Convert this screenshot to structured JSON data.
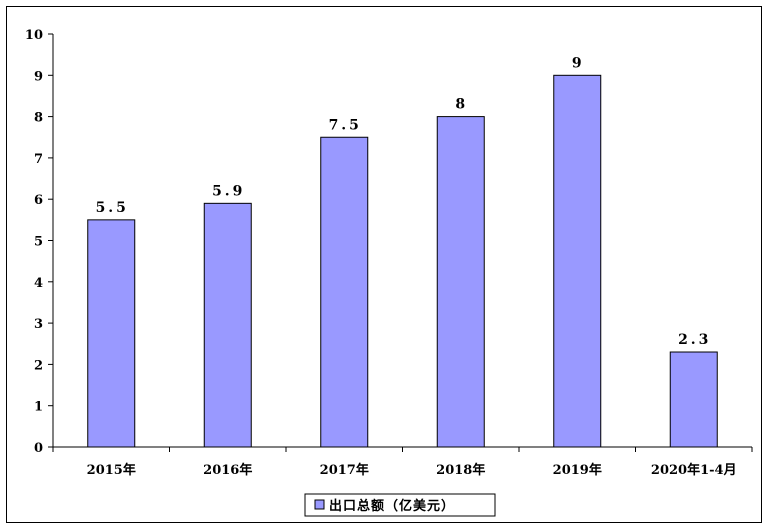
{
  "chart_data": {
    "type": "bar",
    "categories": [
      "2015年",
      "2016年",
      "2017年",
      "2018年",
      "2019年",
      "2020年1-4月"
    ],
    "series": [
      {
        "name": "出口总额（亿美元）",
        "values": [
          5.5,
          5.9,
          7.5,
          8,
          9,
          2.3
        ],
        "data_labels": [
          "5.5",
          "5.9",
          "7.5",
          "8",
          "9",
          "2.3"
        ]
      }
    ],
    "yticks": [
      "0",
      "1",
      "2",
      "3",
      "4",
      "5",
      "6",
      "7",
      "8",
      "9",
      "10"
    ],
    "ylim": [
      0,
      10
    ],
    "title": "",
    "xlabel": "",
    "ylabel": "",
    "grid": false,
    "legend": "bottom-center",
    "colors": {
      "bar": "#9999ff",
      "bar_edge": "#000000",
      "axis": "#000000"
    }
  }
}
